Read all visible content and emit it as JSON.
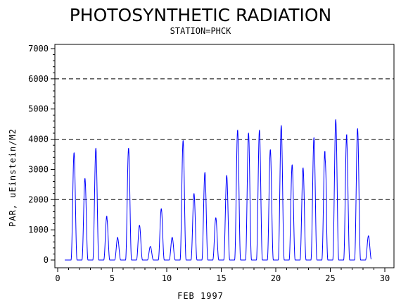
{
  "chart_data": {
    "type": "line",
    "title": "PHOTOSYNTHETIC RADIATION",
    "subtitle": "STATION=PHCK",
    "xlabel": "FEB 1997",
    "ylabel": "PAR, uEinstein/M2",
    "xlim": [
      0,
      30
    ],
    "ylim": [
      0,
      7000
    ],
    "x_ticks": [
      0,
      5,
      10,
      15,
      20,
      25,
      30
    ],
    "y_ticks": [
      0,
      1000,
      2000,
      3000,
      4000,
      5000,
      6000,
      7000
    ],
    "reference_lines": [
      2000,
      4000,
      6000
    ],
    "reference_line_style": "dashed",
    "series_color": "#0000ff",
    "series": [
      {
        "daily_peaks": [
          {
            "day": 1,
            "peak": 3550,
            "hump": 0
          },
          {
            "day": 2,
            "peak": 2700,
            "hump": 0
          },
          {
            "day": 3,
            "peak": 3700,
            "hump": 0
          },
          {
            "day": 4,
            "peak": 1450,
            "hump": 1000
          },
          {
            "day": 5,
            "peak": 750,
            "hump": 400
          },
          {
            "day": 6,
            "peak": 3700,
            "hump": 0
          },
          {
            "day": 7,
            "peak": 1150,
            "hump": 0
          },
          {
            "day": 8,
            "peak": 450,
            "hump": 0
          },
          {
            "day": 9,
            "peak": 1700,
            "hump": 0
          },
          {
            "day": 10,
            "peak": 750,
            "hump": 0
          },
          {
            "day": 11,
            "peak": 3950,
            "hump": 0
          },
          {
            "day": 12,
            "peak": 2200,
            "hump": 0
          },
          {
            "day": 13,
            "peak": 2900,
            "hump": 0
          },
          {
            "day": 14,
            "peak": 1400,
            "hump": 0
          },
          {
            "day": 15,
            "peak": 2800,
            "hump": 0
          },
          {
            "day": 16,
            "peak": 4300,
            "hump": 0
          },
          {
            "day": 17,
            "peak": 4200,
            "hump": 0
          },
          {
            "day": 18,
            "peak": 4300,
            "hump": 0
          },
          {
            "day": 19,
            "peak": 3650,
            "hump": 0
          },
          {
            "day": 20,
            "peak": 4450,
            "hump": 0
          },
          {
            "day": 21,
            "peak": 3150,
            "hump": 0
          },
          {
            "day": 22,
            "peak": 3050,
            "hump": 0
          },
          {
            "day": 23,
            "peak": 4050,
            "hump": 0
          },
          {
            "day": 24,
            "peak": 3600,
            "hump": 3400
          },
          {
            "day": 25,
            "peak": 4650,
            "hump": 0
          },
          {
            "day": 26,
            "peak": 4150,
            "hump": 1800
          },
          {
            "day": 27,
            "peak": 4350,
            "hump": 0
          },
          {
            "day": 28,
            "peak": 800,
            "hump": 0
          }
        ]
      }
    ]
  }
}
